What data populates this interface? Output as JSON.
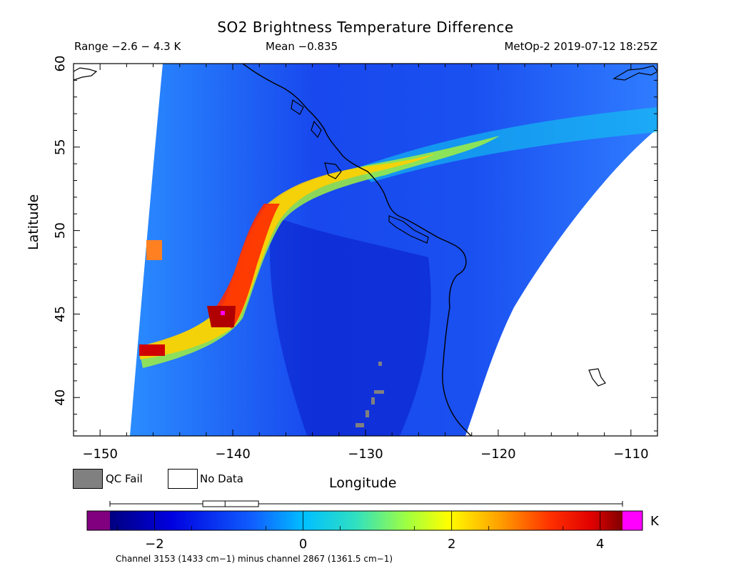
{
  "header": {
    "title": "SO2 Brightness Temperature Difference",
    "range": "Range −2.6 − 4.3 K",
    "mean": "Mean −0.835",
    "satellite_time": "MetOp-2 2019-07-12 18:25Z"
  },
  "axes": {
    "xlabel": "Longitude",
    "ylabel": "Latitude",
    "x_ticks": [
      "−150",
      "−140",
      "−130",
      "−120",
      "−110"
    ],
    "y_ticks": [
      "60",
      "55",
      "50",
      "45",
      "40"
    ],
    "xlim": [
      -152,
      -108
    ],
    "ylim": [
      37.7,
      60
    ]
  },
  "legend": {
    "qc_fail_label": "QC Fail",
    "qc_fail_color": "#808080",
    "no_data_label": "No Data",
    "no_data_color": "#ffffff"
  },
  "colorbar": {
    "tick_labels": [
      "−2",
      "0",
      "2",
      "4"
    ],
    "tick_values": [
      -2,
      0,
      2,
      4
    ],
    "unit": "K",
    "range": [
      -2.6,
      4.3
    ],
    "under_color": "#800080",
    "over_color": "#ff00ff",
    "box_stats": {
      "min": -2.6,
      "q1": -1.35,
      "median": -1.05,
      "q3": -0.6,
      "max": 4.3
    }
  },
  "footnote": "Channel 3153 (1433 cm−1) minus channel 2867 (1361.5 cm−1)"
}
